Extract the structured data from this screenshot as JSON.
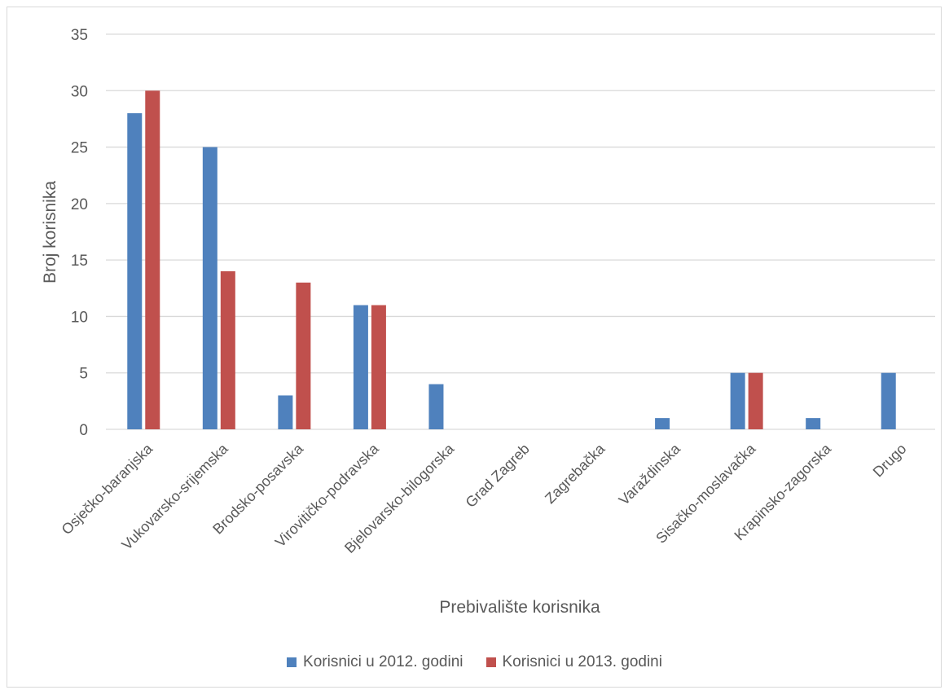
{
  "chart_data": {
    "type": "bar",
    "title": "",
    "xlabel": "Prebivalište korisnika",
    "ylabel": "Broj korisnika",
    "ylim": [
      0,
      35
    ],
    "yticks": [
      0,
      5,
      10,
      15,
      20,
      25,
      30,
      35
    ],
    "grid": true,
    "legend_position": "bottom",
    "categories": [
      "Osječko-baranjska",
      "Vukovarsko-srijemska",
      "Brodsko-posavska",
      "Virovitičko-podravska",
      "Bjelovarsko-bilogorska",
      "Grad Zagreb",
      "Zagrebačka",
      "Varaždinska",
      "Sisačko-moslavačka",
      "Krapinsko-zagorska",
      "Drugo"
    ],
    "series": [
      {
        "name": "Korisnici u 2012. godini",
        "color": "#4f81bd",
        "values": [
          28,
          25,
          3,
          11,
          4,
          0,
          0,
          1,
          5,
          1,
          5
        ]
      },
      {
        "name": "Korisnici u 2013. godini",
        "color": "#c0504d",
        "values": [
          30,
          14,
          13,
          11,
          0,
          0,
          0,
          0,
          5,
          0,
          0
        ]
      }
    ]
  }
}
